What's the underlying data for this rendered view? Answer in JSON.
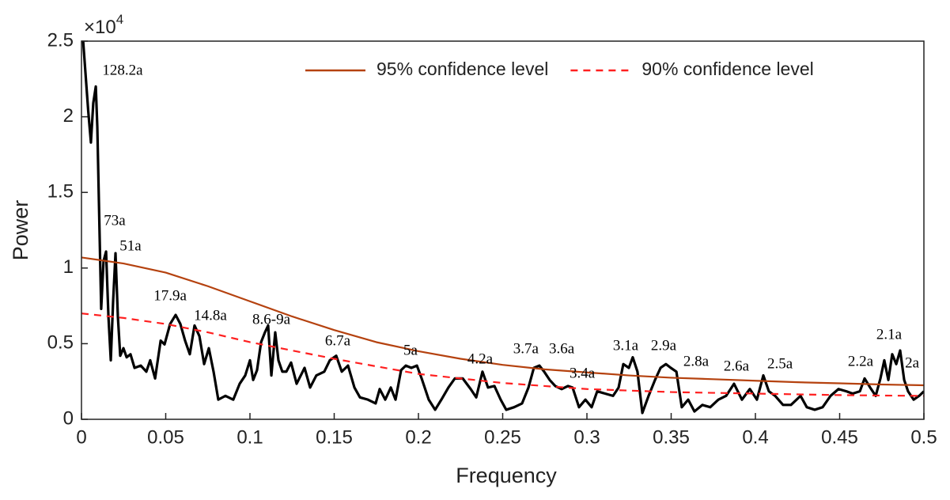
{
  "chart_data": {
    "type": "line",
    "x_label": "Frequency",
    "y_label": "Power",
    "y_scale_label": {
      "base": "×10",
      "exponent": "4"
    },
    "xlim": [
      0,
      0.5
    ],
    "xticks": [
      0,
      0.05,
      0.1,
      0.15,
      0.2,
      0.25,
      0.3,
      0.35,
      0.4,
      0.45,
      0.5
    ],
    "ylim": [
      0,
      25000
    ],
    "yticks": [
      {
        "value": 0,
        "label": "0"
      },
      {
        "value": 5000,
        "label": "0.5"
      },
      {
        "value": 10000,
        "label": "1"
      },
      {
        "value": 15000,
        "label": "1.5"
      },
      {
        "value": 20000,
        "label": "2"
      },
      {
        "value": 25000,
        "label": "2.5"
      }
    ],
    "grid": false,
    "legend": "upper right",
    "series": [
      {
        "color": "#000000",
        "dash": false,
        "x": [
          0.001,
          0.004,
          0.0056,
          0.007,
          0.0085,
          0.0094,
          0.0108,
          0.0117,
          0.0131,
          0.0146,
          0.016,
          0.0174,
          0.0188,
          0.0202,
          0.0216,
          0.023,
          0.0249,
          0.0268,
          0.0291,
          0.0315,
          0.0352,
          0.0385,
          0.0408,
          0.0437,
          0.047,
          0.0493,
          0.0526,
          0.0559,
          0.0587,
          0.0615,
          0.0643,
          0.0671,
          0.07,
          0.0728,
          0.0756,
          0.0784,
          0.0812,
          0.0854,
          0.0901,
          0.0939,
          0.0972,
          0.1,
          0.1019,
          0.1042,
          0.1066,
          0.1089,
          0.1108,
          0.1127,
          0.115,
          0.1169,
          0.1192,
          0.1216,
          0.1244,
          0.1277,
          0.1324,
          0.1357,
          0.1394,
          0.1441,
          0.1474,
          0.1512,
          0.1545,
          0.1582,
          0.162,
          0.1653,
          0.17,
          0.1746,
          0.177,
          0.1803,
          0.1836,
          0.1864,
          0.1897,
          0.1925,
          0.1958,
          0.1991,
          0.2019,
          0.2061,
          0.2099,
          0.2136,
          0.2178,
          0.2216,
          0.2263,
          0.231,
          0.2343,
          0.238,
          0.2413,
          0.2451,
          0.2488,
          0.2521,
          0.2568,
          0.2615,
          0.2653,
          0.2685,
          0.2718,
          0.2746,
          0.2779,
          0.2812,
          0.285,
          0.2887,
          0.2915,
          0.2953,
          0.2991,
          0.3028,
          0.3061,
          0.3108,
          0.3155,
          0.3188,
          0.3216,
          0.3249,
          0.3272,
          0.33,
          0.3329,
          0.3366,
          0.3404,
          0.3437,
          0.3469,
          0.3498,
          0.3531,
          0.3563,
          0.3601,
          0.3638,
          0.3685,
          0.3732,
          0.378,
          0.3826,
          0.3873,
          0.392,
          0.3967,
          0.4009,
          0.4047,
          0.408,
          0.4117,
          0.4164,
          0.4211,
          0.4268,
          0.4305,
          0.4352,
          0.4399,
          0.4446,
          0.4493,
          0.454,
          0.4577,
          0.462,
          0.4648,
          0.4681,
          0.4714,
          0.4742,
          0.4765,
          0.4789,
          0.4812,
          0.4836,
          0.4859,
          0.4883,
          0.4906,
          0.4939,
          0.4972,
          0.5
        ],
        "values": [
          25000,
          20400,
          18300,
          20900,
          22000,
          19350,
          12000,
          7300,
          10460,
          11090,
          6800,
          3900,
          7850,
          10980,
          6800,
          4200,
          4700,
          4100,
          4300,
          3400,
          3550,
          3150,
          3900,
          2700,
          5200,
          4950,
          6300,
          6900,
          6300,
          5200,
          4300,
          6200,
          5500,
          3650,
          4700,
          3150,
          1300,
          1550,
          1300,
          2350,
          2900,
          3900,
          2600,
          3250,
          5100,
          5750,
          6200,
          2900,
          5750,
          3900,
          3150,
          3150,
          3750,
          2350,
          3400,
          2100,
          2900,
          3150,
          3900,
          4200,
          3150,
          3550,
          2100,
          1450,
          1300,
          1050,
          2000,
          1300,
          2100,
          1300,
          3250,
          3550,
          3400,
          3550,
          2700,
          1300,
          630,
          1300,
          2100,
          2700,
          2700,
          2000,
          1450,
          3150,
          2100,
          2200,
          1300,
          630,
          800,
          1050,
          2100,
          3400,
          3550,
          3150,
          2600,
          2200,
          2000,
          2200,
          2100,
          800,
          1300,
          800,
          1850,
          1700,
          1550,
          2100,
          3650,
          3400,
          4100,
          3150,
          420,
          1550,
          2600,
          3400,
          3650,
          3400,
          3150,
          800,
          1300,
          520,
          950,
          800,
          1300,
          1550,
          2350,
          1300,
          2000,
          1300,
          2900,
          1850,
          1550,
          950,
          950,
          1550,
          800,
          630,
          800,
          1550,
          2000,
          1850,
          1700,
          1850,
          2700,
          2100,
          1550,
          2700,
          3900,
          2600,
          4300,
          3650,
          4550,
          2600,
          1850,
          1300,
          1550,
          1850
        ]
      },
      {
        "name": "95% confidence level",
        "color": "#b5420f",
        "dash": false,
        "x": [
          0,
          0.025,
          0.05,
          0.075,
          0.1,
          0.125,
          0.15,
          0.175,
          0.2,
          0.225,
          0.25,
          0.275,
          0.3,
          0.325,
          0.35,
          0.375,
          0.4,
          0.425,
          0.45,
          0.475,
          0.5
        ],
        "values": [
          10700,
          10300,
          9700,
          8800,
          7800,
          6800,
          5900,
          5100,
          4500,
          4000,
          3600,
          3300,
          3100,
          2900,
          2750,
          2650,
          2550,
          2450,
          2380,
          2300,
          2250
        ]
      },
      {
        "name": "90% confidence level",
        "color": "#ff2020",
        "dash": true,
        "x": [
          0,
          0.025,
          0.05,
          0.075,
          0.1,
          0.125,
          0.15,
          0.175,
          0.2,
          0.225,
          0.25,
          0.275,
          0.3,
          0.325,
          0.35,
          0.375,
          0.4,
          0.425,
          0.45,
          0.475,
          0.5
        ],
        "values": [
          7000,
          6700,
          6300,
          5750,
          5100,
          4550,
          4000,
          3500,
          3000,
          2700,
          2400,
          2200,
          2000,
          1900,
          1800,
          1750,
          1700,
          1650,
          1600,
          1570,
          1550
        ]
      }
    ],
    "annotations": [
      {
        "text": "128.2a",
        "x": 0.0244,
        "y": 23000
      },
      {
        "text": "73a",
        "x": 0.0197,
        "y": 13070
      },
      {
        "text": "51a",
        "x": 0.0291,
        "y": 11400
      },
      {
        "text": "17.9a",
        "x": 0.0526,
        "y": 8100
      },
      {
        "text": "14.8a",
        "x": 0.0765,
        "y": 6800
      },
      {
        "text": "8.6-9a",
        "x": 0.1127,
        "y": 6540
      },
      {
        "text": "6.7a",
        "x": 0.1521,
        "y": 5130
      },
      {
        "text": "5a",
        "x": 0.1953,
        "y": 4500
      },
      {
        "text": "4.2a",
        "x": 0.2366,
        "y": 3920
      },
      {
        "text": "3.7a",
        "x": 0.2638,
        "y": 4600
      },
      {
        "text": "3.6a",
        "x": 0.285,
        "y": 4600
      },
      {
        "text": "3.4a",
        "x": 0.2972,
        "y": 2980
      },
      {
        "text": "3.1a",
        "x": 0.323,
        "y": 4810
      },
      {
        "text": "2.9a",
        "x": 0.3455,
        "y": 4810
      },
      {
        "text": "2.8a",
        "x": 0.3648,
        "y": 3770
      },
      {
        "text": "2.6a",
        "x": 0.3887,
        "y": 3450
      },
      {
        "text": "2.5a",
        "x": 0.4146,
        "y": 3610
      },
      {
        "text": "2.2a",
        "x": 0.4624,
        "y": 3770
      },
      {
        "text": "2.1a",
        "x": 0.4793,
        "y": 5540
      },
      {
        "text": "2a",
        "x": 0.493,
        "y": 3660
      }
    ]
  }
}
